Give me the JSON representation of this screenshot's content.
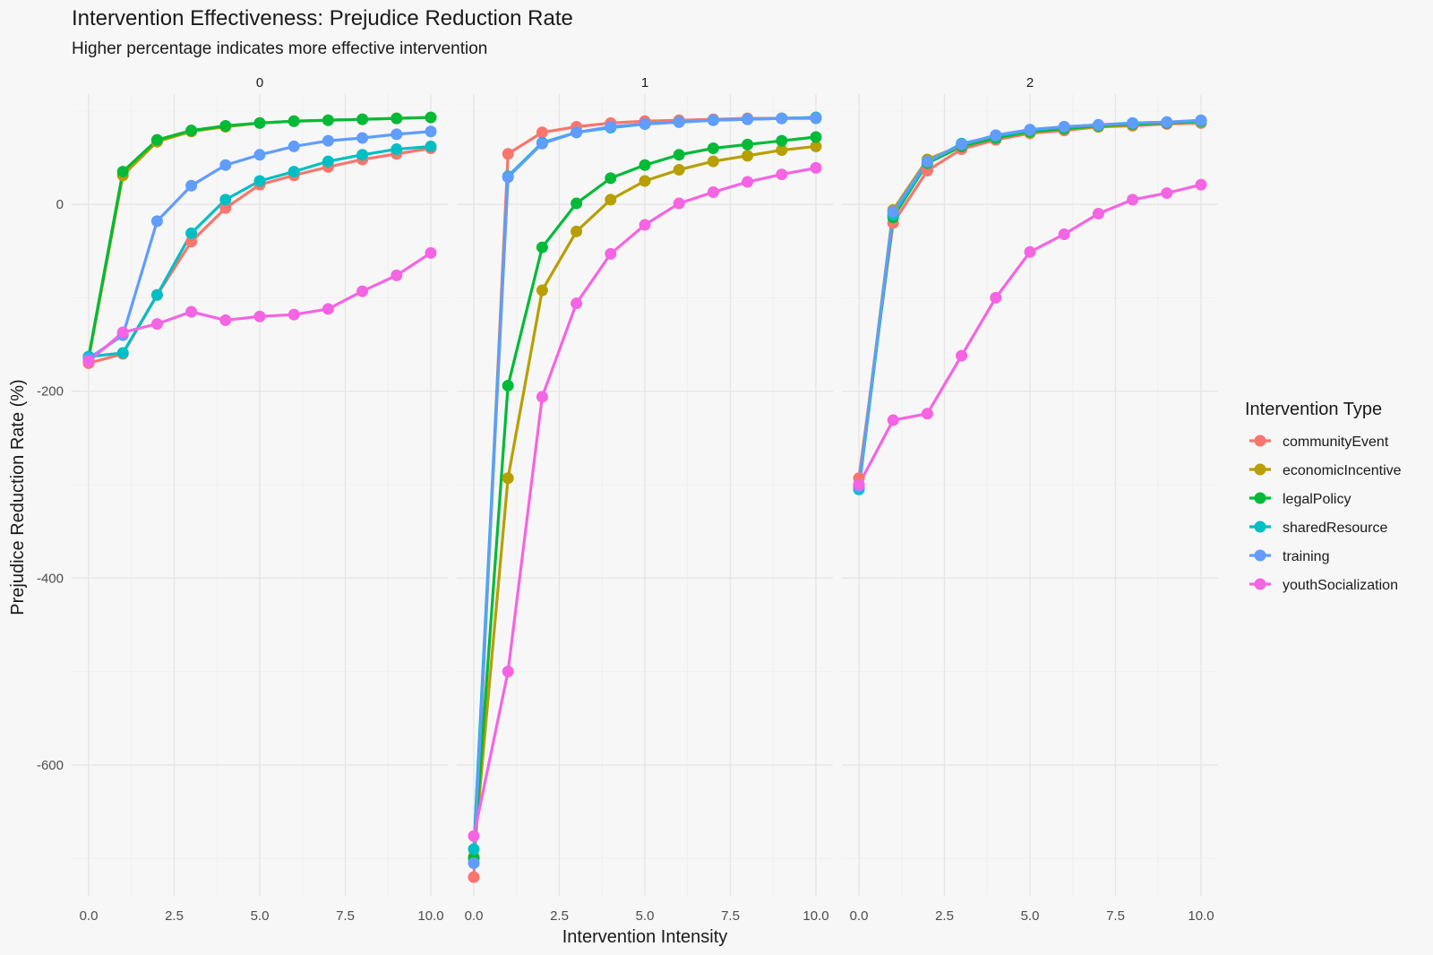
{
  "chart_data": {
    "type": "line",
    "title": "Intervention Effectiveness: Prejudice Reduction Rate",
    "subtitle": "Higher percentage indicates more effective intervention",
    "xlabel": "Intervention Intensity",
    "ylabel": "Prejudice Reduction Rate (%)",
    "xlim": [
      0,
      10
    ],
    "ylim": [
      -740,
      118
    ],
    "x_ticks": [
      "0.0",
      "2.5",
      "5.0",
      "7.5",
      "10.0"
    ],
    "y_ticks": [
      0,
      -200,
      -400,
      -600
    ],
    "grid": true,
    "legend": {
      "title": "Intervention Type",
      "position": "right"
    },
    "facets": [
      {
        "label": "0",
        "x": [
          0,
          1,
          2,
          3,
          4,
          5,
          6,
          7,
          8,
          9,
          10
        ],
        "series": [
          {
            "name": "communityEvent",
            "color": "#F8766D",
            "values": [
              -170,
              -160,
              -97,
              -40,
              -4,
              21,
              31,
              40,
              48,
              54,
              60
            ]
          },
          {
            "name": "economicIncentive",
            "color": "#B79F00",
            "values": [
              -165,
              31,
              67,
              78,
              83,
              87,
              89,
              90,
              91,
              92,
              93
            ]
          },
          {
            "name": "legalPolicy",
            "color": "#00BA38",
            "values": [
              -163,
              35,
              69,
              79,
              84,
              87,
              89,
              90,
              91,
              92,
              93
            ]
          },
          {
            "name": "sharedResource",
            "color": "#00BFC4",
            "values": [
              -163,
              -159,
              -97,
              -31,
              5,
              25,
              35,
              46,
              53,
              59,
              62
            ]
          },
          {
            "name": "training",
            "color": "#619CFF",
            "values": [
              -165,
              -140,
              -18,
              20,
              42,
              53,
              62,
              68,
              71,
              75,
              78
            ]
          },
          {
            "name": "youthSocialization",
            "color": "#F564E3",
            "values": [
              -168,
              -137,
              -128,
              -115,
              -124,
              -120,
              -118,
              -112,
              -93,
              -76,
              -52
            ]
          }
        ]
      },
      {
        "label": "1",
        "x": [
          0,
          1,
          2,
          3,
          4,
          5,
          6,
          7,
          8,
          9,
          10
        ],
        "series": [
          {
            "name": "communityEvent",
            "color": "#F8766D",
            "values": [
              -720,
              54,
              77,
              83,
              87,
              89,
              90,
              91,
              92,
              92,
              93
            ]
          },
          {
            "name": "economicIncentive",
            "color": "#B79F00",
            "values": [
              -698,
              -293,
              -92,
              -29,
              5,
              25,
              37,
              46,
              52,
              58,
              62
            ]
          },
          {
            "name": "legalPolicy",
            "color": "#00BA38",
            "values": [
              -700,
              -194,
              -46,
              1,
              28,
              42,
              53,
              60,
              64,
              68,
              72
            ]
          },
          {
            "name": "sharedResource",
            "color": "#00BFC4",
            "values": [
              -690,
              30,
              66,
              77,
              82,
              86,
              88,
              90,
              91,
              92,
              93
            ]
          },
          {
            "name": "training",
            "color": "#619CFF",
            "values": [
              -705,
              29,
              65,
              77,
              83,
              86,
              88,
              90,
              91,
              92,
              92
            ]
          },
          {
            "name": "youthSocialization",
            "color": "#F564E3",
            "values": [
              -676,
              -500,
              -206,
              -106,
              -53,
              -22,
              1,
              13,
              24,
              32,
              39
            ]
          }
        ]
      },
      {
        "label": "2",
        "x": [
          0,
          1,
          2,
          3,
          4,
          5,
          6,
          7,
          8,
          9,
          10
        ],
        "series": [
          {
            "name": "communityEvent",
            "color": "#F8766D",
            "values": [
              -293,
              -20,
              36,
              59,
              69,
              76,
              79,
              83,
              84,
              86,
              87
            ]
          },
          {
            "name": "economicIncentive",
            "color": "#B79F00",
            "values": [
              -300,
              -6,
              48,
              63,
              71,
              77,
              81,
              83,
              85,
              87,
              88
            ]
          },
          {
            "name": "legalPolicy",
            "color": "#00BA38",
            "values": [
              -303,
              -14,
              44,
              62,
              71,
              78,
              81,
              84,
              86,
              87,
              89
            ]
          },
          {
            "name": "sharedResource",
            "color": "#00BFC4",
            "values": [
              -305,
              -11,
              45,
              65,
              73,
              79,
              83,
              85,
              87,
              88,
              89
            ]
          },
          {
            "name": "training",
            "color": "#619CFF",
            "values": [
              -302,
              -8,
              46,
              64,
              74,
              80,
              83,
              85,
              87,
              88,
              90
            ]
          },
          {
            "name": "youthSocialization",
            "color": "#F564E3",
            "values": [
              -300,
              -231,
              -224,
              -162,
              -100,
              -51,
              -32,
              -10,
              5,
              12,
              21
            ]
          }
        ]
      }
    ]
  }
}
